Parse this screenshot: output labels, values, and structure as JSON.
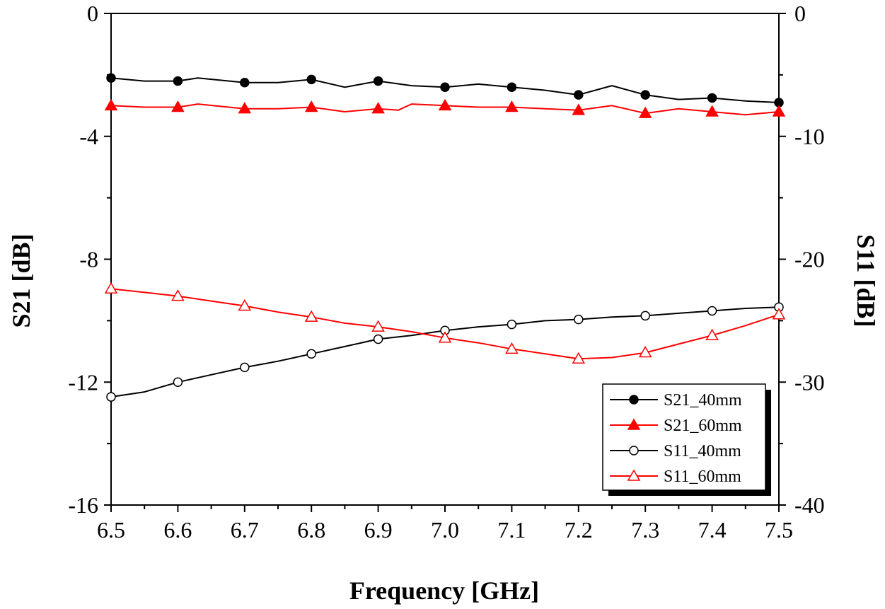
{
  "chart_data": {
    "type": "line",
    "title": "",
    "xlabel": "Frequency [GHz]",
    "ylabel_left": "S21 [dB]",
    "ylabel_right": "S11 [dB]",
    "xlim": [
      6.5,
      7.5
    ],
    "ylim_left": [
      -16,
      0
    ],
    "ylim_right": [
      -40,
      0
    ],
    "x_ticks": [
      "6.5",
      "6.6",
      "6.7",
      "6.8",
      "6.9",
      "7.0",
      "7.1",
      "7.2",
      "7.3",
      "7.4",
      "7.5"
    ],
    "y_left_ticks": [
      "0",
      "-4",
      "-8",
      "-12",
      "-16"
    ],
    "y_right_ticks": [
      "0",
      "-10",
      "-20",
      "-30",
      "-40"
    ],
    "grid": false,
    "legend_position": "bottom-right",
    "series": [
      {
        "name": "S21_40mm",
        "axis": "left",
        "color": "#000000",
        "marker": "filled-circle",
        "x": [
          6.5,
          6.55,
          6.6,
          6.63,
          6.7,
          6.75,
          6.8,
          6.85,
          6.9,
          6.95,
          7.0,
          7.05,
          7.1,
          7.15,
          7.2,
          7.25,
          7.3,
          7.35,
          7.4,
          7.45,
          7.5
        ],
        "values": [
          -2.1,
          -2.2,
          -2.2,
          -2.1,
          -2.25,
          -2.25,
          -2.15,
          -2.4,
          -2.2,
          -2.35,
          -2.4,
          -2.3,
          -2.4,
          -2.5,
          -2.65,
          -2.35,
          -2.65,
          -2.8,
          -2.75,
          -2.85,
          -2.9
        ]
      },
      {
        "name": "S21_60mm",
        "axis": "left",
        "color": "#ff0000",
        "marker": "filled-triangle",
        "x": [
          6.5,
          6.55,
          6.6,
          6.63,
          6.7,
          6.75,
          6.8,
          6.85,
          6.9,
          6.93,
          6.95,
          7.0,
          7.05,
          7.1,
          7.15,
          7.2,
          7.25,
          7.3,
          7.35,
          7.4,
          7.45,
          7.5
        ],
        "values": [
          -3.0,
          -3.05,
          -3.05,
          -2.95,
          -3.1,
          -3.1,
          -3.05,
          -3.2,
          -3.1,
          -3.15,
          -2.95,
          -3.0,
          -3.05,
          -3.05,
          -3.1,
          -3.15,
          -3.0,
          -3.25,
          -3.1,
          -3.2,
          -3.3,
          -3.2
        ]
      },
      {
        "name": "S11_40mm",
        "axis": "right",
        "color": "#000000",
        "marker": "open-circle",
        "x": [
          6.5,
          6.55,
          6.6,
          6.65,
          6.7,
          6.75,
          6.8,
          6.85,
          6.9,
          6.95,
          7.0,
          7.05,
          7.1,
          7.15,
          7.2,
          7.25,
          7.3,
          7.35,
          7.4,
          7.45,
          7.5
        ],
        "values": [
          -31.2,
          -30.8,
          -30.0,
          -29.4,
          -28.8,
          -28.3,
          -27.7,
          -27.1,
          -26.5,
          -26.2,
          -25.8,
          -25.5,
          -25.3,
          -25.0,
          -24.9,
          -24.7,
          -24.6,
          -24.4,
          -24.2,
          -24.0,
          -23.9
        ]
      },
      {
        "name": "S11_60mm",
        "axis": "right",
        "color": "#ff0000",
        "marker": "open-triangle",
        "x": [
          6.5,
          6.55,
          6.6,
          6.65,
          6.7,
          6.75,
          6.8,
          6.85,
          6.9,
          6.95,
          7.0,
          7.05,
          7.1,
          7.15,
          7.2,
          7.25,
          7.3,
          7.35,
          7.4,
          7.45,
          7.5
        ],
        "values": [
          -22.4,
          -22.7,
          -23.0,
          -23.4,
          -23.8,
          -24.3,
          -24.7,
          -25.2,
          -25.5,
          -25.9,
          -26.4,
          -26.8,
          -27.3,
          -27.7,
          -28.1,
          -28.0,
          -27.6,
          -26.9,
          -26.2,
          -25.4,
          -24.5
        ]
      }
    ]
  }
}
